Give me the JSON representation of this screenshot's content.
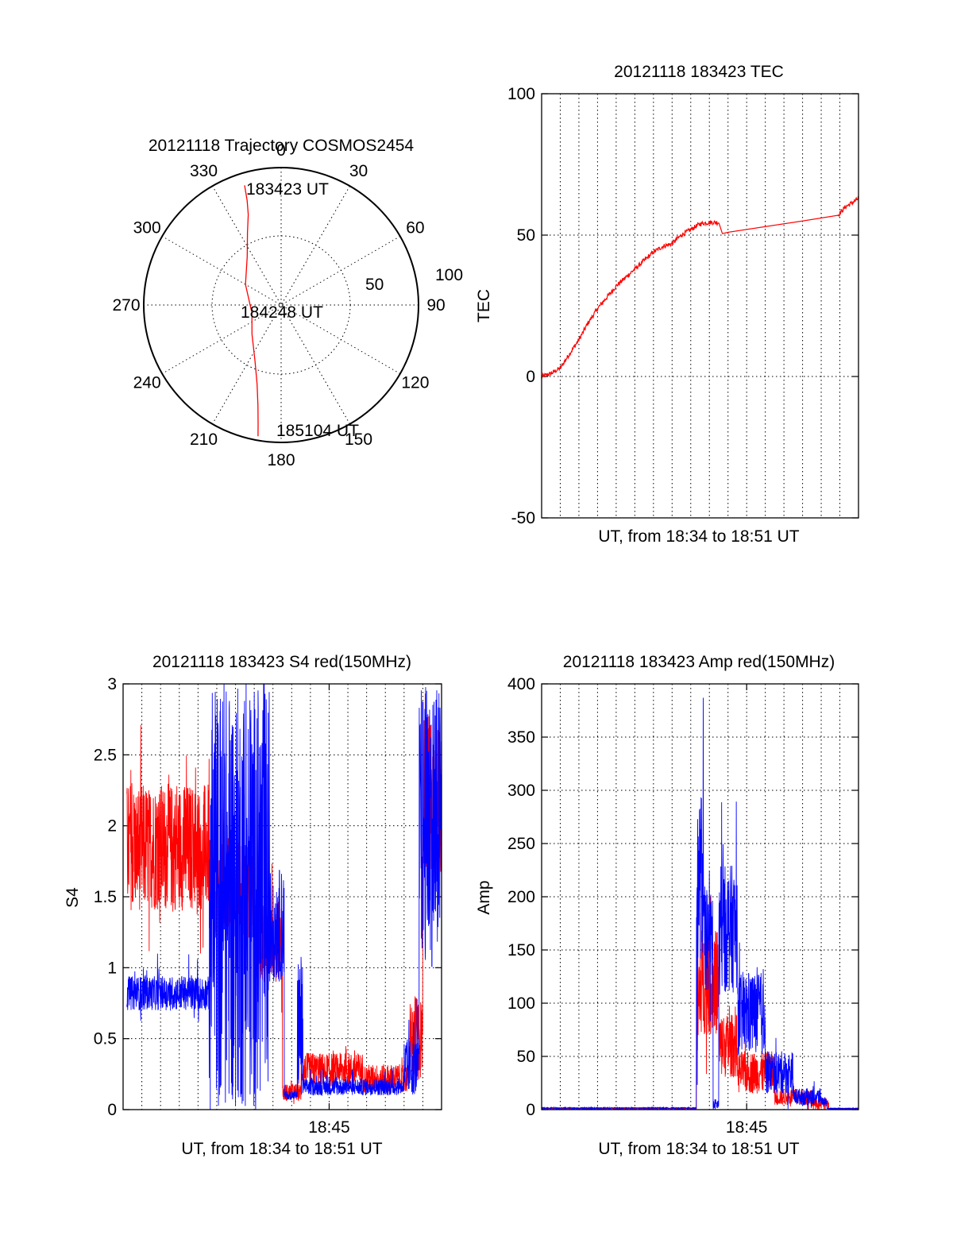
{
  "colors": {
    "red": "#ff0000",
    "blue": "#0000ff",
    "axis": "#000000"
  },
  "chart_data": [
    {
      "type": "polar",
      "title": "20121118 Trajectory COSMOS2454",
      "angle_labels": [
        "0",
        "30",
        "60",
        "90",
        "120",
        "150",
        "180",
        "210",
        "240",
        "270",
        "300",
        "330"
      ],
      "angles_deg": [
        0,
        30,
        60,
        90,
        120,
        150,
        180,
        210,
        240,
        270,
        300,
        330
      ],
      "radial_ticks": [
        "50",
        "100"
      ],
      "radial_values": [
        50,
        100
      ],
      "rlim": [
        0,
        100
      ],
      "point_labels": {
        "start": "183423 UT",
        "middle": "184248 UT",
        "end": "185104 UT"
      },
      "series": [
        {
          "color": "#ff0000",
          "points": [
            {
              "az": 343,
              "r": 91
            },
            {
              "az": 342,
              "r": 80
            },
            {
              "az": 340,
              "r": 70
            },
            {
              "az": 335,
              "r": 58
            },
            {
              "az": 325,
              "r": 43
            },
            {
              "az": 300,
              "r": 30
            },
            {
              "az": 255,
              "r": 22
            },
            {
              "az": 225,
              "r": 30
            },
            {
              "az": 205,
              "r": 45
            },
            {
              "az": 197,
              "r": 60
            },
            {
              "az": 193,
              "r": 75
            },
            {
              "az": 191,
              "r": 88
            },
            {
              "az": 190,
              "r": 97
            }
          ]
        }
      ]
    },
    {
      "type": "line",
      "title": "20121118 183423 TEC",
      "xlabel": "UT, from 18:34 to 18:51 UT",
      "ylabel": "TEC",
      "xlim": [
        0,
        17
      ],
      "ylim": [
        -50,
        100
      ],
      "yticks": [
        "100",
        "50",
        "0",
        "-50"
      ],
      "ytick_values": [
        100,
        50,
        0,
        -50
      ],
      "xgrid_count": 17,
      "grid": true,
      "series": [
        {
          "color": "#ff0000",
          "noise": 0.8,
          "points": [
            [
              0.0,
              0
            ],
            [
              0.5,
              1
            ],
            [
              1.0,
              3
            ],
            [
              1.5,
              8
            ],
            [
              2.0,
              13
            ],
            [
              2.5,
              19
            ],
            [
              3.0,
              24
            ],
            [
              3.5,
              28
            ],
            [
              4.0,
              32
            ],
            [
              4.5,
              35
            ],
            [
              5.0,
              38
            ],
            [
              5.5,
              41
            ],
            [
              6.0,
              44
            ],
            [
              6.5,
              46
            ],
            [
              7.0,
              47
            ],
            [
              7.5,
              50
            ],
            [
              8.0,
              52
            ],
            [
              8.5,
              54
            ],
            [
              9.0,
              54.5
            ],
            [
              9.5,
              54.5
            ],
            [
              9.7,
              50.5
            ],
            [
              10.0,
              51
            ],
            [
              12.0,
              53
            ],
            [
              14.0,
              55
            ],
            [
              15.9,
              57
            ],
            [
              16.3,
              60
            ],
            [
              16.8,
              62
            ],
            [
              17.0,
              63
            ]
          ]
        }
      ]
    },
    {
      "type": "line",
      "title": "20121118 183423 S4 red(150MHz)",
      "xlabel": "UT, from 18:34 to 18:51 UT",
      "ylabel": "S4",
      "xlim": [
        0,
        17
      ],
      "ylim": [
        0,
        3
      ],
      "yticks": [
        "3",
        "2.5",
        "2",
        "1.5",
        "1",
        "0.5",
        "0"
      ],
      "ytick_values": [
        3,
        2.5,
        2,
        1.5,
        1,
        0.5,
        0
      ],
      "xtick_label": "18:45",
      "xtick_value": 11,
      "xgrid_count": 17,
      "grid": true,
      "series": [
        {
          "name": "red",
          "color": "#ff0000",
          "segments": [
            {
              "x0": 0.2,
              "x1": 4.6,
              "base": 1.85,
              "amp": 0.45,
              "spike": 0.5
            },
            {
              "x0": 4.6,
              "x1": 7.0,
              "base": 1.55,
              "amp": 0.35,
              "spike": 0.3
            },
            {
              "x0": 7.0,
              "x1": 8.5,
              "base": 1.2,
              "amp": 0.3,
              "spike": 0.3
            },
            {
              "x0": 8.5,
              "x1": 9.5,
              "base": 0.12,
              "amp": 0.06,
              "spike": 0.05
            },
            {
              "x0": 9.5,
              "x1": 12.8,
              "base": 0.28,
              "amp": 0.12,
              "spike": 0.1
            },
            {
              "x0": 12.8,
              "x1": 15.3,
              "base": 0.22,
              "amp": 0.1,
              "spike": 0.05
            },
            {
              "x0": 15.3,
              "x1": 16.0,
              "base": 0.5,
              "amp": 0.3,
              "spike": 0.2
            },
            {
              "x0": 16.0,
              "x1": 17.0,
              "base": 2.2,
              "amp": 0.6,
              "spike": 0.4
            }
          ]
        },
        {
          "name": "blue",
          "color": "#0000ff",
          "segments": [
            {
              "x0": 0.2,
              "x1": 4.6,
              "base": 0.82,
              "amp": 0.12,
              "spike": 0.2
            },
            {
              "x0": 4.6,
              "x1": 7.8,
              "base": 1.5,
              "amp": 1.5,
              "spike": 1.5
            },
            {
              "x0": 7.8,
              "x1": 8.6,
              "base": 1.3,
              "amp": 0.4,
              "spike": 0.8
            },
            {
              "x0": 8.6,
              "x1": 9.3,
              "base": 0.1,
              "amp": 0.03,
              "spike": 0.02
            },
            {
              "x0": 9.3,
              "x1": 9.6,
              "base": 0.6,
              "amp": 0.5,
              "spike": 0.4
            },
            {
              "x0": 9.6,
              "x1": 15.0,
              "base": 0.16,
              "amp": 0.06,
              "spike": 0.08
            },
            {
              "x0": 15.0,
              "x1": 15.8,
              "base": 0.3,
              "amp": 0.2,
              "spike": 0.3
            },
            {
              "x0": 15.8,
              "x1": 17.0,
              "base": 2.0,
              "amp": 1.0,
              "spike": 1.0
            }
          ]
        }
      ]
    },
    {
      "type": "line",
      "title": "20121118 183423 Amp red(150MHz)",
      "xlabel": "UT, from 18:34 to 18:51 UT",
      "ylabel": "Amp",
      "xlim": [
        0,
        17
      ],
      "ylim": [
        0,
        400
      ],
      "yticks": [
        "400",
        "350",
        "300",
        "250",
        "200",
        "150",
        "100",
        "50",
        "0"
      ],
      "ytick_values": [
        400,
        350,
        300,
        250,
        200,
        150,
        100,
        50,
        0
      ],
      "xtick_label": "18:45",
      "xtick_value": 11,
      "xgrid_count": 17,
      "grid": true,
      "series": [
        {
          "name": "red",
          "color": "#ff0000",
          "segments": [
            {
              "x0": 0.0,
              "x1": 8.3,
              "base": 1,
              "amp": 0.5,
              "spike": 0
            },
            {
              "x0": 8.3,
              "x1": 8.5,
              "base": 100,
              "amp": 60,
              "spike": 40
            },
            {
              "x0": 8.5,
              "x1": 9.5,
              "base": 120,
              "amp": 50,
              "spike": 50
            },
            {
              "x0": 9.5,
              "x1": 10.5,
              "base": 60,
              "amp": 30,
              "spike": 30
            },
            {
              "x0": 10.5,
              "x1": 12.5,
              "base": 35,
              "amp": 20,
              "spike": 20
            },
            {
              "x0": 12.5,
              "x1": 14.5,
              "base": 12,
              "amp": 8,
              "spike": 10
            },
            {
              "x0": 14.5,
              "x1": 15.4,
              "base": 5,
              "amp": 5,
              "spike": 10
            },
            {
              "x0": 15.4,
              "x1": 17.0,
              "base": 1,
              "amp": 0.5,
              "spike": 0
            }
          ]
        },
        {
          "name": "blue",
          "color": "#0000ff",
          "segments": [
            {
              "x0": 0.0,
              "x1": 8.3,
              "base": 1.5,
              "amp": 0.5,
              "spike": 0
            },
            {
              "x0": 8.3,
              "x1": 8.7,
              "base": 220,
              "amp": 80,
              "spike": 140
            },
            {
              "x0": 8.7,
              "x1": 9.2,
              "base": 160,
              "amp": 50,
              "spike": 60
            },
            {
              "x0": 9.2,
              "x1": 9.5,
              "base": 5,
              "amp": 5,
              "spike": 0
            },
            {
              "x0": 9.5,
              "x1": 10.5,
              "base": 170,
              "amp": 60,
              "spike": 110
            },
            {
              "x0": 10.5,
              "x1": 12.0,
              "base": 90,
              "amp": 40,
              "spike": 40
            },
            {
              "x0": 12.0,
              "x1": 13.5,
              "base": 35,
              "amp": 20,
              "spike": 20
            },
            {
              "x0": 13.5,
              "x1": 15.0,
              "base": 12,
              "amp": 8,
              "spike": 8
            },
            {
              "x0": 15.0,
              "x1": 15.3,
              "base": 8,
              "amp": 4,
              "spike": 0
            },
            {
              "x0": 15.3,
              "x1": 17.0,
              "base": 1,
              "amp": 0.3,
              "spike": 0
            }
          ]
        }
      ]
    }
  ]
}
